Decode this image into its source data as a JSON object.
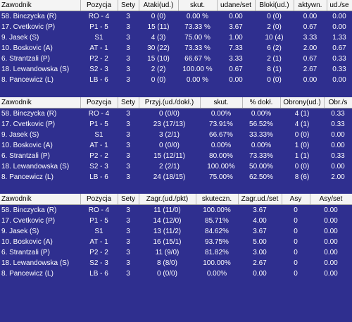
{
  "attack": {
    "headers": [
      "Zawodnik",
      "Pozycja",
      "Sety",
      "Ataki(ud.)",
      "skut.",
      "udane/set",
      "Bloki(ud.)",
      "aktywn.",
      "ud./se"
    ],
    "rows": [
      [
        "58. Binczycka (R)",
        "RO - 4",
        "3",
        "0 (0)",
        "0.00 %",
        "0.00",
        "0 (0)",
        "0.00",
        "0.00"
      ],
      [
        "17. Cvetkovic (P)",
        "P1 - 5",
        "3",
        "15 (11)",
        "73.33 %",
        "3.67",
        "2 (0)",
        "0.67",
        "0.00"
      ],
      [
        "9. Jasek (S)",
        "S1",
        "3",
        "4 (3)",
        "75.00 %",
        "1.00",
        "10 (4)",
        "3.33",
        "1.33"
      ],
      [
        "10. Boskovic (A)",
        "AT - 1",
        "3",
        "30 (22)",
        "73.33 %",
        "7.33",
        "6 (2)",
        "2.00",
        "0.67"
      ],
      [
        "6. Strantzali (P)",
        "P2 - 2",
        "3",
        "15 (10)",
        "66.67 %",
        "3.33",
        "2 (1)",
        "0.67",
        "0.33"
      ],
      [
        "18. Lewandowska (S)",
        "S2 - 3",
        "3",
        "2 (2)",
        "100.00 %",
        "0.67",
        "8 (1)",
        "2.67",
        "0.33"
      ],
      [
        "8. Pancewicz (L)",
        "LB - 6",
        "3",
        "0 (0)",
        "0.00 %",
        "0.00",
        "0 (0)",
        "0.00",
        "0.00"
      ]
    ]
  },
  "reception": {
    "headers": [
      "Zawodnik",
      "Pozycja",
      "Sety",
      "Przyj.(ud./dokł.)",
      "skut.",
      "% dokł.",
      "Obrony(ud.)",
      "Obr./s"
    ],
    "rows": [
      [
        "58. Binczycka (R)",
        "RO - 4",
        "3",
        "0 (0/0)",
        "0.00%",
        "0.00%",
        "4 (1)",
        "0.33"
      ],
      [
        "17. Cvetkovic (P)",
        "P1 - 5",
        "3",
        "23 (17/13)",
        "73.91%",
        "56.52%",
        "4 (1)",
        "0.33"
      ],
      [
        "9. Jasek (S)",
        "S1",
        "3",
        "3 (2/1)",
        "66.67%",
        "33.33%",
        "0 (0)",
        "0.00"
      ],
      [
        "10. Boskovic (A)",
        "AT - 1",
        "3",
        "0 (0/0)",
        "0.00%",
        "0.00%",
        "1 (0)",
        "0.00"
      ],
      [
        "6. Strantzali (P)",
        "P2 - 2",
        "3",
        "15 (12/11)",
        "80.00%",
        "73.33%",
        "1 (1)",
        "0.33"
      ],
      [
        "18. Lewandowska (S)",
        "S2 - 3",
        "3",
        "2 (2/1)",
        "100.00%",
        "50.00%",
        "0 (0)",
        "0.00"
      ],
      [
        "8. Pancewicz (L)",
        "LB - 6",
        "3",
        "24 (18/15)",
        "75.00%",
        "62.50%",
        "8 (6)",
        "2.00"
      ]
    ]
  },
  "serve": {
    "headers": [
      "Zawodnik",
      "Pozycja",
      "Sety",
      "Zagr.(ud./pkt)",
      "skuteczn.",
      "Zagr.ud./set",
      "Asy",
      "Asy/set"
    ],
    "rows": [
      [
        "58. Binczycka (R)",
        "RO - 4",
        "3",
        "11 (11/0)",
        "100.00%",
        "3.67",
        "0",
        "0.00"
      ],
      [
        "17. Cvetkovic (P)",
        "P1 - 5",
        "3",
        "14 (12/0)",
        "85.71%",
        "4.00",
        "0",
        "0.00"
      ],
      [
        "9. Jasek (S)",
        "S1",
        "3",
        "13 (11/2)",
        "84.62%",
        "3.67",
        "0",
        "0.00"
      ],
      [
        "10. Boskovic (A)",
        "AT - 1",
        "3",
        "16 (15/1)",
        "93.75%",
        "5.00",
        "0",
        "0.00"
      ],
      [
        "6. Strantzali (P)",
        "P2 - 2",
        "3",
        "11 (9/0)",
        "81.82%",
        "3.00",
        "0",
        "0.00"
      ],
      [
        "18. Lewandowska (S)",
        "S2 - 3",
        "3",
        "8 (8/0)",
        "100.00%",
        "2.67",
        "0",
        "0.00"
      ],
      [
        "8. Pancewicz (L)",
        "LB - 6",
        "3",
        "0 (0/0)",
        "0.00%",
        "0.00",
        "0",
        "0.00"
      ]
    ]
  }
}
